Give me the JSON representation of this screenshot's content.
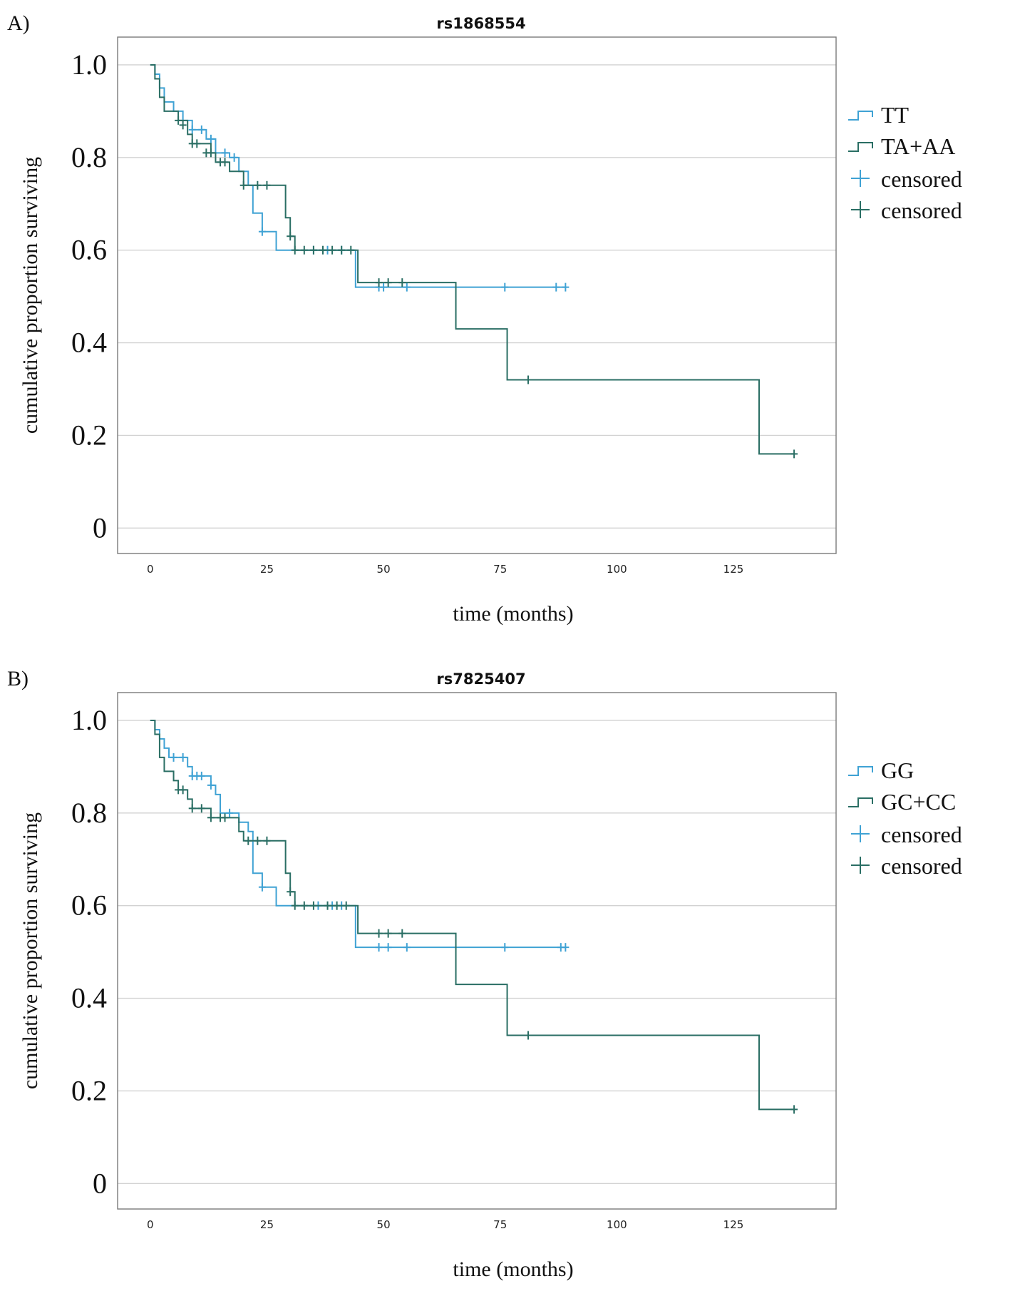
{
  "chart_data": [
    {
      "type": "line",
      "panel_label": "A)",
      "title": "rs1868554",
      "xlabel": "time (months)",
      "ylabel": "cumulative proportion surviving",
      "xlim": [
        -7,
        147
      ],
      "ylim": [
        -0.055,
        1.06
      ],
      "xticks": [
        0,
        25,
        50,
        75,
        100,
        125
      ],
      "yticks": [
        0,
        0.2,
        0.4,
        0.6,
        0.8,
        1.0
      ],
      "ytick_labels": [
        "0",
        "0.2",
        "0.4",
        "0.6",
        "0.8",
        "1.0"
      ],
      "grid": true,
      "legend_position": "top-right",
      "legend": [
        "TT",
        "TA+AA",
        "censored",
        "censored"
      ],
      "series": [
        {
          "name": "TT",
          "color": "#3fa2d4",
          "steps": [
            [
              0,
              1.0
            ],
            [
              1,
              0.98
            ],
            [
              2,
              0.95
            ],
            [
              3,
              0.92
            ],
            [
              5,
              0.9
            ],
            [
              7,
              0.88
            ],
            [
              9,
              0.86
            ],
            [
              12,
              0.84
            ],
            [
              14,
              0.81
            ],
            [
              17,
              0.8
            ],
            [
              19,
              0.77
            ],
            [
              21,
              0.74
            ],
            [
              22,
              0.68
            ],
            [
              24,
              0.64
            ],
            [
              27,
              0.6
            ],
            [
              43,
              0.6
            ],
            [
              44,
              0.52
            ],
            [
              89,
              0.52
            ]
          ],
          "censored": [
            [
              9,
              0.86
            ],
            [
              11,
              0.86
            ],
            [
              13,
              0.84
            ],
            [
              16,
              0.81
            ],
            [
              18,
              0.8
            ],
            [
              24,
              0.64
            ],
            [
              35,
              0.6
            ],
            [
              38,
              0.6
            ],
            [
              41,
              0.6
            ],
            [
              49,
              0.52
            ],
            [
              50,
              0.52
            ],
            [
              55,
              0.52
            ],
            [
              76,
              0.52
            ],
            [
              87,
              0.52
            ],
            [
              89,
              0.52
            ]
          ]
        },
        {
          "name": "TA+AA",
          "color": "#2a6e64",
          "steps": [
            [
              0,
              1.0
            ],
            [
              1,
              0.97
            ],
            [
              2,
              0.93
            ],
            [
              3,
              0.9
            ],
            [
              6,
              0.88
            ],
            [
              8,
              0.85
            ],
            [
              9,
              0.83
            ],
            [
              13,
              0.81
            ],
            [
              14,
              0.79
            ],
            [
              17,
              0.77
            ],
            [
              20,
              0.74
            ],
            [
              28,
              0.74
            ],
            [
              29,
              0.67
            ],
            [
              30,
              0.63
            ],
            [
              31,
              0.6
            ],
            [
              44,
              0.6
            ],
            [
              44.5,
              0.53
            ],
            [
              65,
              0.53
            ],
            [
              65.5,
              0.43
            ],
            [
              76,
              0.43
            ],
            [
              76.5,
              0.32
            ],
            [
              130,
              0.32
            ],
            [
              130.5,
              0.16
            ],
            [
              138,
              0.16
            ]
          ],
          "censored": [
            [
              6,
              0.88
            ],
            [
              7,
              0.87
            ],
            [
              9,
              0.83
            ],
            [
              10,
              0.83
            ],
            [
              12,
              0.81
            ],
            [
              13,
              0.81
            ],
            [
              15,
              0.79
            ],
            [
              16,
              0.79
            ],
            [
              20,
              0.74
            ],
            [
              23,
              0.74
            ],
            [
              25,
              0.74
            ],
            [
              30,
              0.63
            ],
            [
              31,
              0.6
            ],
            [
              33,
              0.6
            ],
            [
              35,
              0.6
            ],
            [
              37,
              0.6
            ],
            [
              39,
              0.6
            ],
            [
              41,
              0.6
            ],
            [
              43,
              0.6
            ],
            [
              49,
              0.53
            ],
            [
              51,
              0.53
            ],
            [
              54,
              0.53
            ],
            [
              81,
              0.32
            ],
            [
              138,
              0.16
            ]
          ]
        }
      ]
    },
    {
      "type": "line",
      "panel_label": "B)",
      "title": "rs7825407",
      "xlabel": "time (months)",
      "ylabel": "cumulative proportion surviving",
      "xlim": [
        -7,
        147
      ],
      "ylim": [
        -0.055,
        1.06
      ],
      "xticks": [
        0,
        25,
        50,
        75,
        100,
        125
      ],
      "yticks": [
        0,
        0.2,
        0.4,
        0.6,
        0.8,
        1.0
      ],
      "ytick_labels": [
        "0",
        "0.2",
        "0.4",
        "0.6",
        "0.8",
        "1.0"
      ],
      "grid": true,
      "legend_position": "top-right",
      "legend": [
        "GG",
        "GC+CC",
        "censored",
        "censored"
      ],
      "series": [
        {
          "name": "GG",
          "color": "#3fa2d4",
          "steps": [
            [
              0,
              1.0
            ],
            [
              1,
              0.98
            ],
            [
              2,
              0.96
            ],
            [
              3,
              0.94
            ],
            [
              4,
              0.92
            ],
            [
              7,
              0.92
            ],
            [
              8,
              0.9
            ],
            [
              9,
              0.88
            ],
            [
              12,
              0.88
            ],
            [
              13,
              0.86
            ],
            [
              14,
              0.84
            ],
            [
              15,
              0.8
            ],
            [
              18,
              0.8
            ],
            [
              19,
              0.78
            ],
            [
              21,
              0.76
            ],
            [
              22,
              0.67
            ],
            [
              24,
              0.64
            ],
            [
              27,
              0.6
            ],
            [
              43,
              0.6
            ],
            [
              44,
              0.51
            ],
            [
              89,
              0.51
            ]
          ],
          "censored": [
            [
              5,
              0.92
            ],
            [
              7,
              0.92
            ],
            [
              9,
              0.88
            ],
            [
              10,
              0.88
            ],
            [
              11,
              0.88
            ],
            [
              13,
              0.86
            ],
            [
              17,
              0.8
            ],
            [
              24,
              0.64
            ],
            [
              36,
              0.6
            ],
            [
              39,
              0.6
            ],
            [
              41,
              0.6
            ],
            [
              49,
              0.51
            ],
            [
              51,
              0.51
            ],
            [
              55,
              0.51
            ],
            [
              76,
              0.51
            ],
            [
              88,
              0.51
            ],
            [
              89,
              0.51
            ]
          ]
        },
        {
          "name": "GC+CC",
          "color": "#2a6e64",
          "steps": [
            [
              0,
              1.0
            ],
            [
              1,
              0.97
            ],
            [
              2,
              0.92
            ],
            [
              3,
              0.89
            ],
            [
              5,
              0.87
            ],
            [
              6,
              0.85
            ],
            [
              8,
              0.83
            ],
            [
              9,
              0.81
            ],
            [
              12,
              0.81
            ],
            [
              13,
              0.79
            ],
            [
              17,
              0.79
            ],
            [
              19,
              0.76
            ],
            [
              20,
              0.74
            ],
            [
              28,
              0.74
            ],
            [
              29,
              0.67
            ],
            [
              30,
              0.63
            ],
            [
              31,
              0.6
            ],
            [
              44,
              0.6
            ],
            [
              44.5,
              0.54
            ],
            [
              65,
              0.54
            ],
            [
              65.5,
              0.43
            ],
            [
              76,
              0.43
            ],
            [
              76.5,
              0.32
            ],
            [
              130,
              0.32
            ],
            [
              130.5,
              0.16
            ],
            [
              138,
              0.16
            ]
          ],
          "censored": [
            [
              6,
              0.85
            ],
            [
              7,
              0.85
            ],
            [
              9,
              0.81
            ],
            [
              11,
              0.81
            ],
            [
              13,
              0.79
            ],
            [
              15,
              0.79
            ],
            [
              16,
              0.79
            ],
            [
              21,
              0.74
            ],
            [
              23,
              0.74
            ],
            [
              25,
              0.74
            ],
            [
              30,
              0.63
            ],
            [
              31,
              0.6
            ],
            [
              33,
              0.6
            ],
            [
              35,
              0.6
            ],
            [
              38,
              0.6
            ],
            [
              40,
              0.6
            ],
            [
              42,
              0.6
            ],
            [
              49,
              0.54
            ],
            [
              51,
              0.54
            ],
            [
              54,
              0.54
            ],
            [
              81,
              0.32
            ],
            [
              138,
              0.16
            ]
          ]
        }
      ]
    }
  ]
}
